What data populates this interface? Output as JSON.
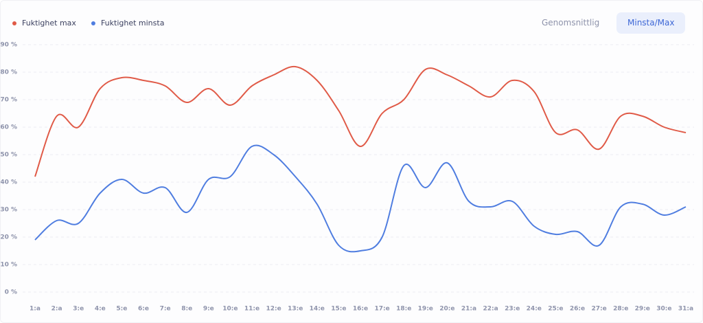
{
  "chart_data": {
    "type": "line",
    "categories": [
      "1:a",
      "2:a",
      "3:e",
      "4:e",
      "5:e",
      "6:e",
      "7:e",
      "8:e",
      "9:e",
      "10:e",
      "11:e",
      "12:e",
      "13:e",
      "14:e",
      "15:e",
      "16:e",
      "17:e",
      "18:e",
      "19:e",
      "20:e",
      "21:a",
      "22:a",
      "23:e",
      "24:e",
      "25:e",
      "26:e",
      "27:e",
      "28:e",
      "29:e",
      "30:e",
      "31:a"
    ],
    "series": [
      {
        "name": "Fuktighet max",
        "color": "#e05a47",
        "values": [
          42,
          64,
          60,
          74,
          78,
          77,
          75,
          69,
          74,
          68,
          75,
          79,
          82,
          77,
          66,
          53,
          65,
          70,
          81,
          79,
          75,
          71,
          77,
          73,
          58,
          59,
          52,
          64,
          64,
          60,
          58
        ]
      },
      {
        "name": "Fuktighet minsta",
        "color": "#4f7de0",
        "values": [
          19,
          26,
          25,
          36,
          41,
          36,
          38,
          29,
          41,
          42,
          53,
          50,
          42,
          32,
          17,
          15,
          20,
          46,
          38,
          47,
          33,
          31,
          33,
          24,
          21,
          22,
          17,
          31,
          32,
          28,
          31
        ]
      }
    ],
    "ylim": [
      0,
      90
    ],
    "yticks": [
      {
        "value": 0,
        "label": "0 %"
      },
      {
        "value": 10,
        "label": "10 %"
      },
      {
        "value": 20,
        "label": "20 %"
      },
      {
        "value": 30,
        "label": "30 %"
      },
      {
        "value": 40,
        "label": "40 %"
      },
      {
        "value": 50,
        "label": "50 %"
      },
      {
        "value": 60,
        "label": "60 %"
      },
      {
        "value": 70,
        "label": "70 %"
      },
      {
        "value": 80,
        "label": "80 %"
      },
      {
        "value": 90,
        "label": "90 %"
      }
    ],
    "grid": true
  },
  "controls": {
    "buttons": [
      "Genomsnittlig",
      "Minsta/Max"
    ]
  }
}
